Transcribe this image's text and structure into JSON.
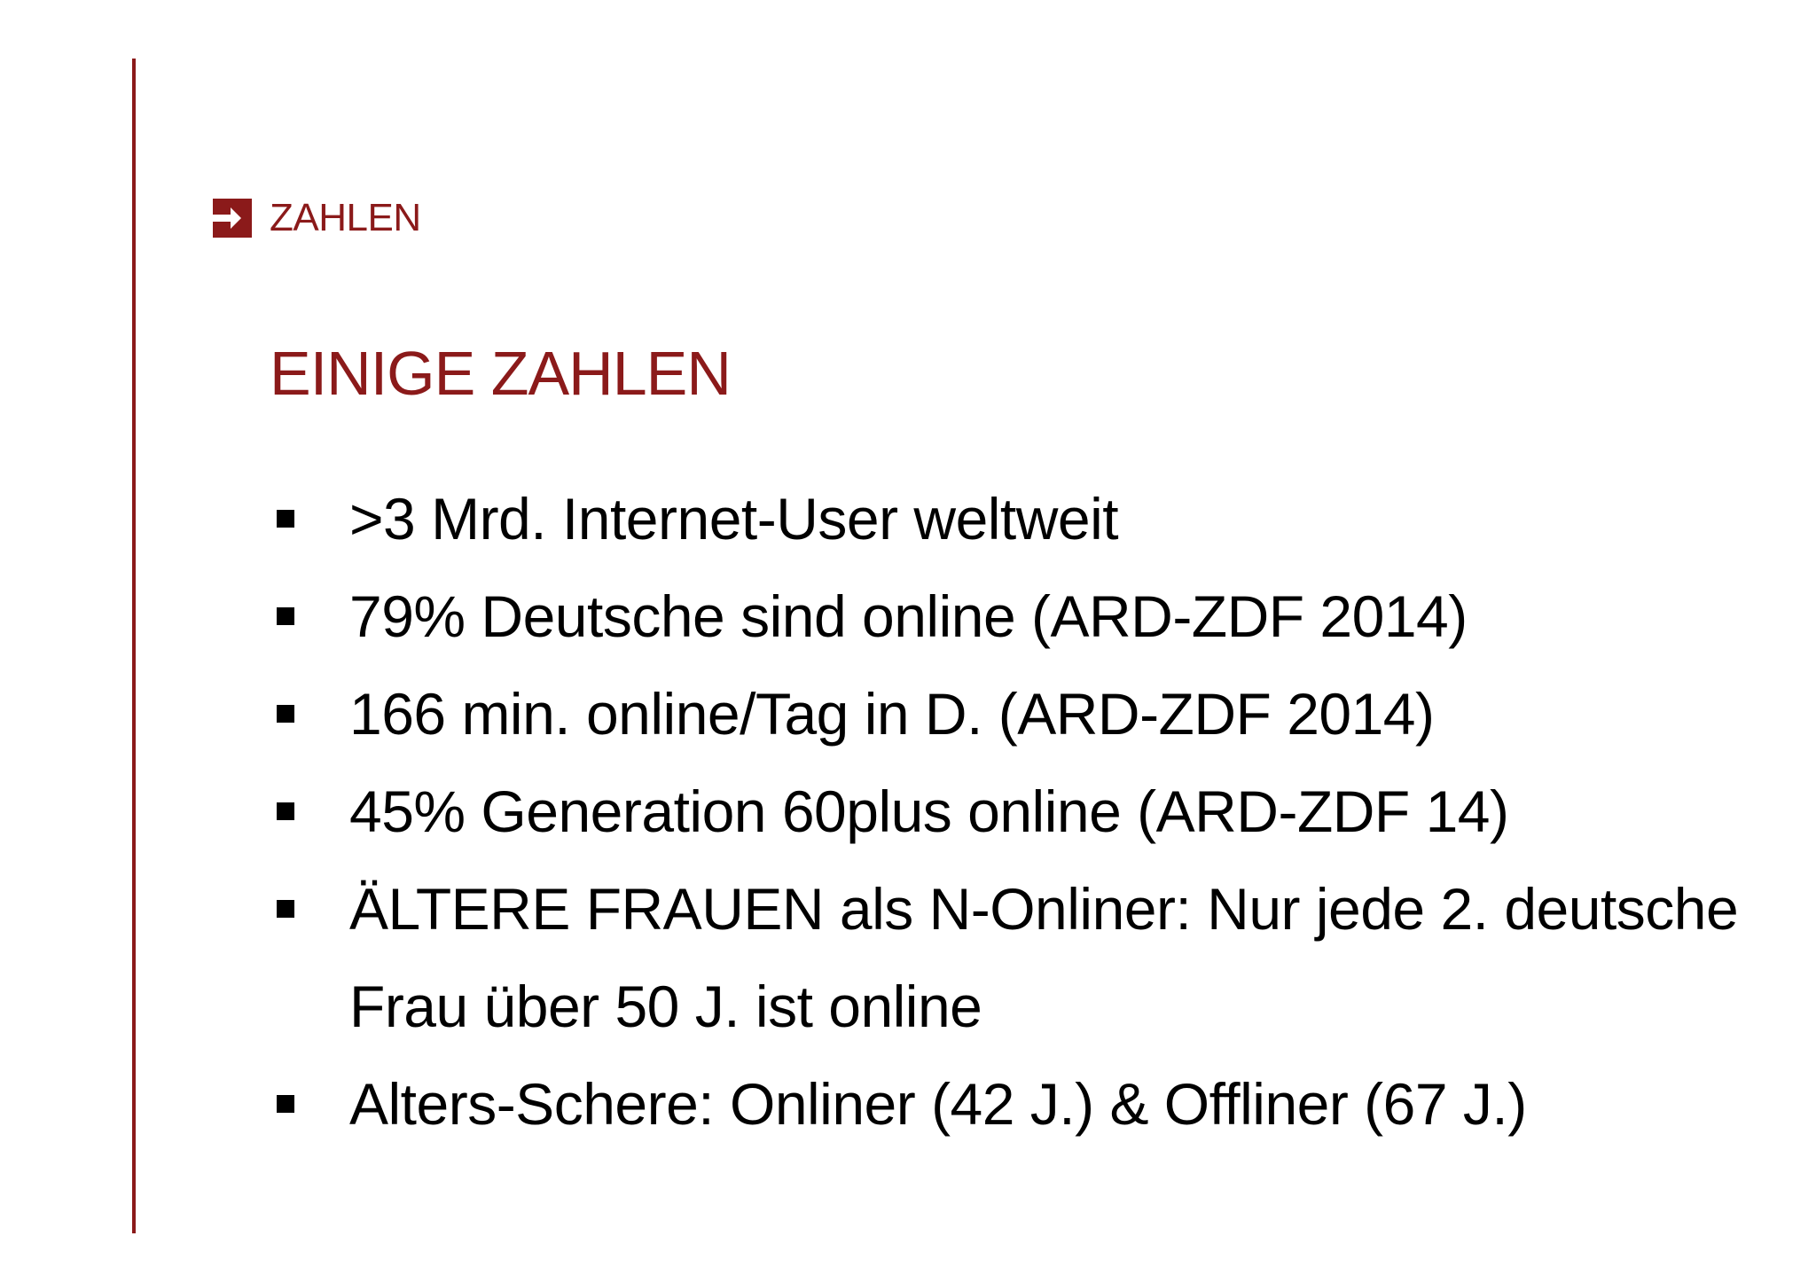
{
  "slide": {
    "section_label": "ZAHLEN",
    "title": "EINIGE ZAHLEN",
    "bullets": [
      ">3 Mrd. Internet-User weltweit",
      "79% Deutsche sind online (ARD-ZDF 2014)",
      "166 min. online/Tag in D. (ARD-ZDF 2014)",
      "45% Generation 60plus online (ARD-ZDF 14)",
      "ÄLTERE FRAUEN als N-Onliner: Nur jede 2. deutsche Frau über 50 J. ist online",
      "Alters-Schere: Onliner (42 J.) & Offliner (67 J.)"
    ]
  },
  "colors": {
    "accent": "#8b1a1a",
    "text": "#000000",
    "background": "#ffffff"
  },
  "icons": {
    "section": "arrow-right-box-icon",
    "bullet": "square-bullet-icon"
  }
}
